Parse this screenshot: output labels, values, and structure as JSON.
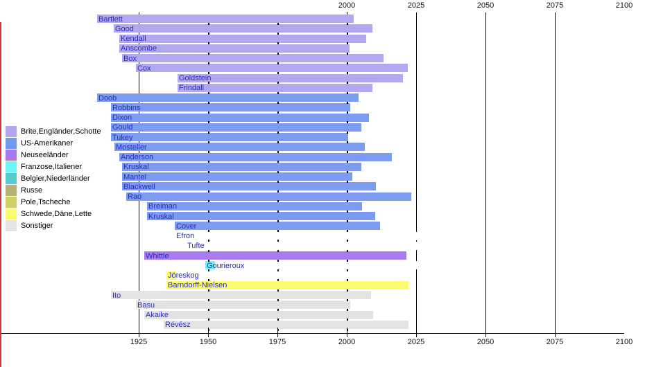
{
  "chart_data": {
    "type": "bar",
    "subtype": "timeline-lifespans",
    "title": "",
    "xlabel": "",
    "ylabel": "",
    "axis": {
      "unit": "year",
      "range": [
        1875,
        2100
      ],
      "top_tick_labels": [
        "2000",
        "2025",
        "2050",
        "2075",
        "2100"
      ],
      "top_tick_years": [
        2000,
        2025,
        2050,
        2075,
        2100
      ],
      "bottom_tick_labels": [
        "1925",
        "1950",
        "1975",
        "2000",
        "2025",
        "2050",
        "2075",
        "2100"
      ],
      "bottom_tick_years": [
        1925,
        1950,
        1975,
        2000,
        2025,
        2050,
        2075,
        2100
      ],
      "major_grid_years": [
        1925,
        2025,
        2050,
        2075
      ],
      "minor_dot_years": [
        1950,
        1975,
        2000
      ],
      "grid": true
    },
    "legend": {
      "position": "left",
      "items": [
        {
          "key": "brite",
          "label": "Brite,Engländer,Schotte",
          "color": "#b2a6ec"
        },
        {
          "key": "us",
          "label": "US-Amerikaner",
          "color": "#6f9aee"
        },
        {
          "key": "nz",
          "label": "Neuseeländer",
          "color": "#a878f0"
        },
        {
          "key": "fr",
          "label": "Franzose,Italiener",
          "color": "#6ef2f6"
        },
        {
          "key": "be",
          "label": "Belgier,Niederländer",
          "color": "#56cbcd"
        },
        {
          "key": "ru",
          "label": "Russe",
          "color": "#b4b375"
        },
        {
          "key": "pl",
          "label": "Pole,Tscheche",
          "color": "#ced25e"
        },
        {
          "key": "se",
          "label": "Schwede,Däne,Lette",
          "color": "#fcfc6e"
        },
        {
          "key": "other",
          "label": "Sonstiger",
          "color": "#e4e4e4"
        }
      ]
    },
    "people": [
      {
        "name": "Bartlett",
        "group": "brite",
        "birth": 1910,
        "death": 2002.5
      },
      {
        "name": "Good",
        "group": "brite",
        "birth": 1916,
        "death": 2009.25
      },
      {
        "name": "Kendall",
        "group": "brite",
        "birth": 1918,
        "death": 2007
      },
      {
        "name": "Anscombe",
        "group": "brite",
        "birth": 1918,
        "death": 2001
      },
      {
        "name": "Box",
        "group": "brite",
        "birth": 1919,
        "death": 2013.25
      },
      {
        "name": "Cox",
        "group": "brite",
        "birth": 1924,
        "death": 2022
      },
      {
        "name": "Goldstein",
        "group": "brite",
        "birth": 1939,
        "death": 2020.25
      },
      {
        "name": "Frindall",
        "group": "brite",
        "birth": 1939,
        "death": 2009.25
      },
      {
        "name": "Doob",
        "group": "us",
        "birth": 1910,
        "death": 2004.25
      },
      {
        "name": "Robbins",
        "group": "us",
        "birth": 1915,
        "death": 2001.25
      },
      {
        "name": "Dixon",
        "group": "us",
        "birth": 1915,
        "death": 2008
      },
      {
        "name": "Gould",
        "group": "us",
        "birth": 1915,
        "death": 2005.25
      },
      {
        "name": "Tukey",
        "group": "us",
        "birth": 1915,
        "death": 2000.5
      },
      {
        "name": "Mosteller",
        "group": "us",
        "birth": 1916.25,
        "death": 2006.5
      },
      {
        "name": "Anderson",
        "group": "us",
        "birth": 1918,
        "death": 2016.25
      },
      {
        "name": "Kruskal",
        "group": "us",
        "birth": 1919,
        "death": 2005.25
      },
      {
        "name": "Mantel",
        "group": "us",
        "birth": 1919,
        "death": 2002
      },
      {
        "name": "Blackwell",
        "group": "us",
        "birth": 1919,
        "death": 2010.5
      },
      {
        "name": "Rao",
        "group": "us",
        "birth": 1920.5,
        "death": 2023.25
      },
      {
        "name": "Breiman",
        "group": "us",
        "birth": 1928,
        "death": 2005.5
      },
      {
        "name": "Kruskal",
        "group": "us",
        "birth": 1928,
        "death": 2010.25
      },
      {
        "name": "Cover",
        "group": "us",
        "birth": 1938,
        "death": 2012
      },
      {
        "name": "Efron",
        "group": "none",
        "birth": 1938,
        "death": null,
        "cover2025": true
      },
      {
        "name": "Tufte",
        "group": "none",
        "birth": 1942,
        "death": null,
        "cover2025": true
      },
      {
        "name": "Whittle",
        "group": "nz",
        "birth": 1927,
        "death": 2021.5
      },
      {
        "name": "Gourieroux",
        "group": "fr",
        "birth": 1949,
        "death": 1952.5,
        "cover2025": true
      },
      {
        "name": "Jöreskog",
        "group": "se",
        "birth": 1935,
        "death": 1938.5
      },
      {
        "name": "Barndorff-Nielsen",
        "group": "se",
        "birth": 1935,
        "death": 2022.25
      },
      {
        "name": "Ito",
        "group": "other",
        "birth": 1915,
        "death": 2008.75
      },
      {
        "name": "Basu",
        "group": "other",
        "birth": 1924,
        "death": 2001.25
      },
      {
        "name": "Akaike",
        "group": "other",
        "birth": 1927,
        "death": 2009.5
      },
      {
        "name": "Révész",
        "group": "other",
        "birth": 1934,
        "death": 2022.25
      }
    ]
  },
  "style_colors": {
    "name_label": "#2b2bbb",
    "axis_text": "#111111",
    "grid_line": "#000000",
    "left_border": "#c43c3c",
    "bar_colors": {
      "brite": "#b1a8ef",
      "us": "#7b9cf0",
      "nz": "#a87cf0",
      "fr": "#6ef2f6",
      "be": "#56cbcd",
      "ru": "#b4b375",
      "pl": "#ced25e",
      "se": "#fcfc74",
      "other": "#e3e3e3"
    }
  }
}
